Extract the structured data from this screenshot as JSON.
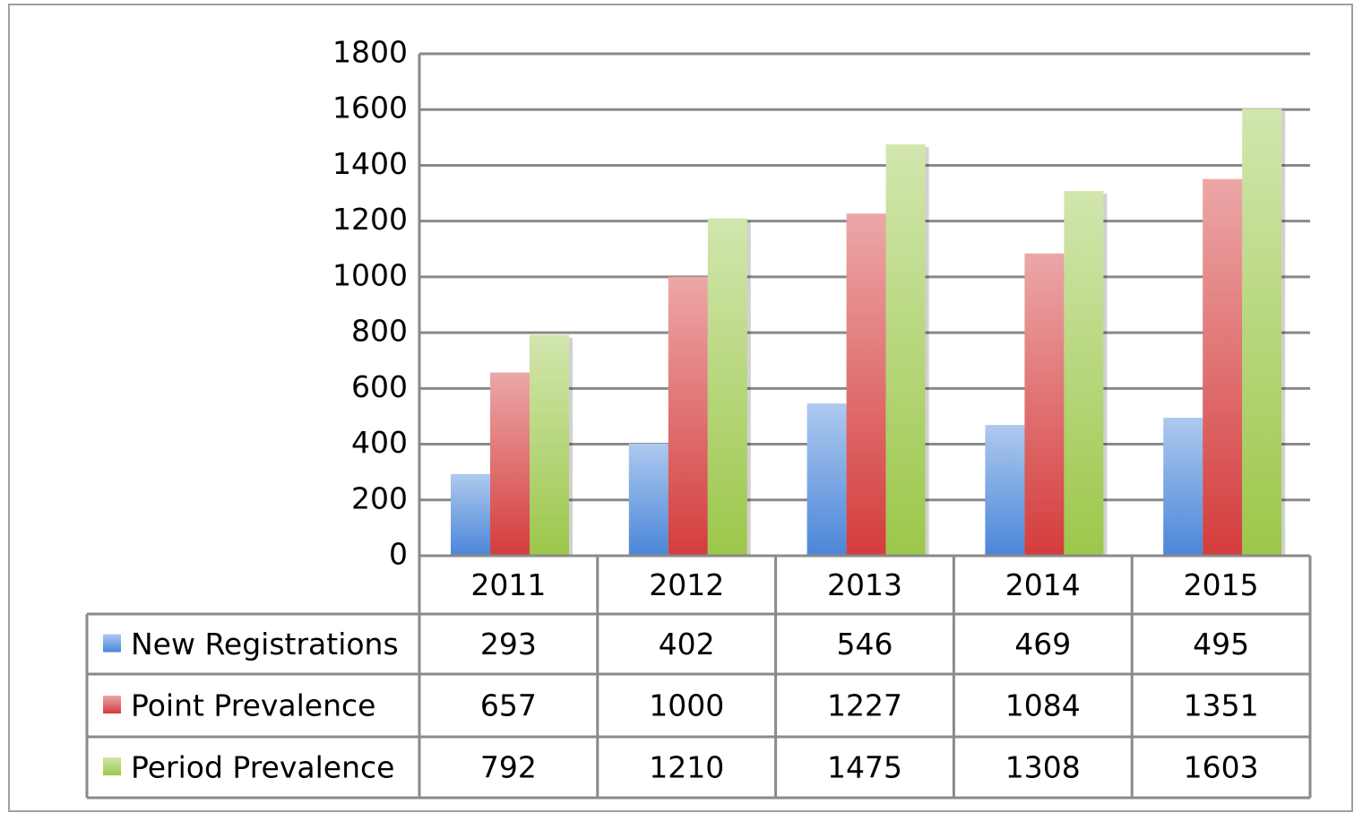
{
  "chart_data": {
    "type": "bar",
    "categories": [
      "2011",
      "2012",
      "2013",
      "2014",
      "2015"
    ],
    "series": [
      {
        "name": "New Registrations",
        "color": "#4a86d9",
        "values": [
          293,
          402,
          546,
          469,
          495
        ]
      },
      {
        "name": "Point Prevalence",
        "color": "#d43c3c",
        "values": [
          657,
          1000,
          1227,
          1084,
          1351
        ]
      },
      {
        "name": "Period Prevalence",
        "color": "#9cc74a",
        "values": [
          792,
          1210,
          1475,
          1308,
          1603
        ]
      }
    ],
    "ylim": [
      0,
      1800
    ],
    "yticks": [
      0,
      200,
      400,
      600,
      800,
      1000,
      1200,
      1400,
      1600,
      1800
    ],
    "grid": true,
    "data_table": true
  }
}
